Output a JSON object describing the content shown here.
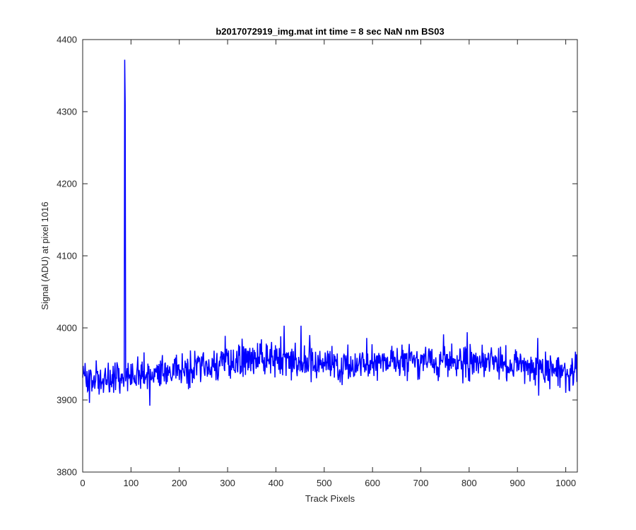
{
  "chart_data": {
    "type": "line",
    "title": "b2017072919_img.mat int time = 8 sec  NaN nm BS03",
    "xlabel": "Track Pixels",
    "ylabel": "Signal (ADU) at pixel 1016",
    "xlim": [
      0,
      1024
    ],
    "ylim": [
      3800,
      4400
    ],
    "xticks": [
      0,
      100,
      200,
      300,
      400,
      500,
      600,
      700,
      800,
      900,
      1000
    ],
    "yticks": [
      3800,
      3900,
      4000,
      4100,
      4200,
      4300,
      4400
    ],
    "xtick_labels": [
      "0",
      "100",
      "200",
      "300",
      "400",
      "500",
      "600",
      "700",
      "800",
      "900",
      "1000"
    ],
    "ytick_labels": [
      "3800",
      "3900",
      "4000",
      "4100",
      "4200",
      "4300",
      "4400"
    ],
    "grid": false,
    "series": [
      {
        "color": "#0000ff",
        "n_points": 1024,
        "baseline": [
          [
            0,
            3928
          ],
          [
            60,
            3930
          ],
          [
            100,
            3933
          ],
          [
            150,
            3935
          ],
          [
            200,
            3940
          ],
          [
            250,
            3946
          ],
          [
            300,
            3952
          ],
          [
            350,
            3956
          ],
          [
            400,
            3956
          ],
          [
            450,
            3953
          ],
          [
            500,
            3950
          ],
          [
            550,
            3949
          ],
          [
            600,
            3950
          ],
          [
            650,
            3952
          ],
          [
            700,
            3954
          ],
          [
            750,
            3956
          ],
          [
            800,
            3955
          ],
          [
            850,
            3952
          ],
          [
            900,
            3950
          ],
          [
            950,
            3944
          ],
          [
            1000,
            3940
          ],
          [
            1023,
            3940
          ]
        ],
        "noise_amplitude": 12,
        "features": [
          {
            "x": 87,
            "y": 4372
          },
          {
            "x": 88,
            "y": 4310
          },
          {
            "x": 86,
            "y": 3933
          },
          {
            "x": 8,
            "y": 3918
          },
          {
            "x": 14,
            "y": 3896
          },
          {
            "x": 139,
            "y": 3892
          },
          {
            "x": 127,
            "y": 3966
          },
          {
            "x": 295,
            "y": 3989
          },
          {
            "x": 330,
            "y": 3985
          },
          {
            "x": 362,
            "y": 3979
          },
          {
            "x": 417,
            "y": 4003
          },
          {
            "x": 452,
            "y": 4003
          },
          {
            "x": 470,
            "y": 3990
          },
          {
            "x": 588,
            "y": 3986
          },
          {
            "x": 796,
            "y": 3994
          },
          {
            "x": 747,
            "y": 3991
          },
          {
            "x": 942,
            "y": 3986
          },
          {
            "x": 944,
            "y": 3906
          },
          {
            "x": 1000,
            "y": 3910
          },
          {
            "x": 1020,
            "y": 3967
          },
          {
            "x": 1023,
            "y": 3925
          }
        ]
      }
    ]
  }
}
